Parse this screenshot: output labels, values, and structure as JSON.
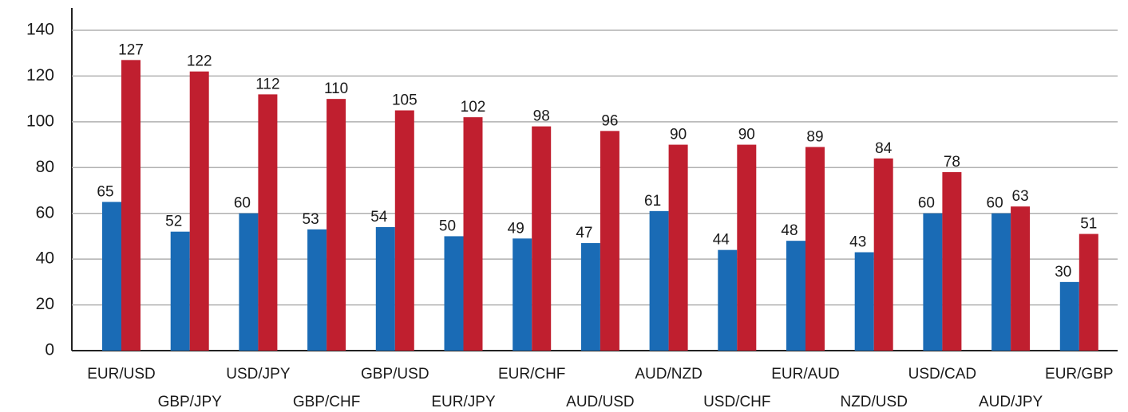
{
  "chart_data": {
    "type": "bar",
    "categories": [
      "EUR/USD",
      "GBP/JPY",
      "USD/JPY",
      "GBP/CHF",
      "GBP/USD",
      "EUR/JPY",
      "EUR/CHF",
      "AUD/USD",
      "AUD/NZD",
      "USD/CHF",
      "EUR/AUD",
      "NZD/USD",
      "USD/CAD",
      "AUD/JPY",
      "EUR/GBP"
    ],
    "series": [
      {
        "color": "#1a6bb5",
        "values": [
          65,
          52,
          60,
          53,
          54,
          50,
          49,
          47,
          61,
          44,
          48,
          43,
          60,
          60,
          30
        ]
      },
      {
        "color": "#c01f2f",
        "values": [
          127,
          122,
          112,
          110,
          105,
          102,
          98,
          96,
          90,
          90,
          89,
          84,
          78,
          63,
          51
        ]
      }
    ],
    "ylim": [
      0,
      140
    ],
    "yticks": [
      0,
      20,
      40,
      60,
      80,
      100,
      120,
      140
    ],
    "grid": true
  }
}
